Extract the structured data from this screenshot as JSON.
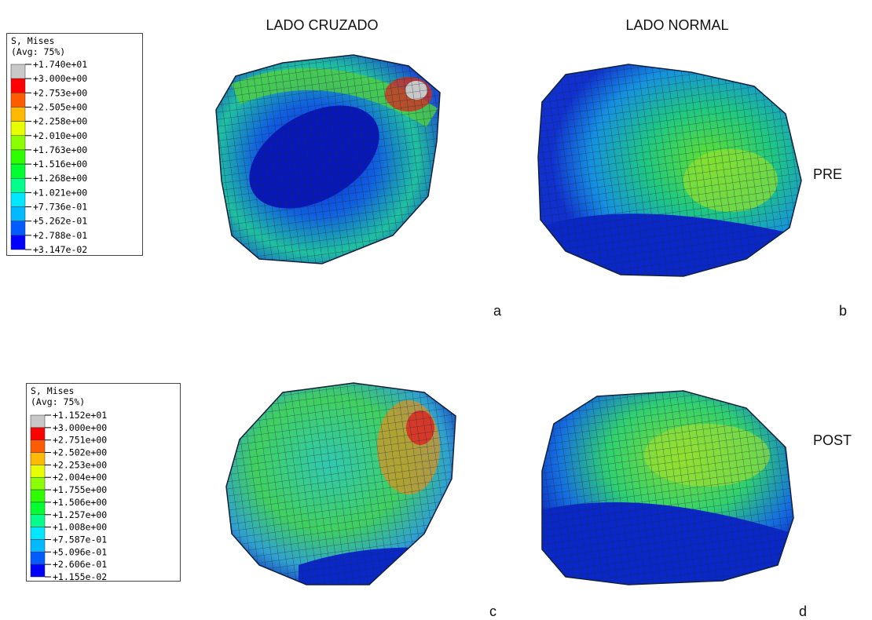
{
  "header": {
    "columns": [
      "LADO CRUZADO",
      "LADO NORMAL"
    ]
  },
  "rows": [
    "PRE",
    "POST"
  ],
  "panels": [
    "a",
    "b",
    "c",
    "d"
  ],
  "legends": [
    {
      "title": "S, Mises",
      "subtitle": "(Avg: 75%)",
      "labels": [
        "+1.740e+01",
        "+3.000e+00",
        "+2.753e+00",
        "+2.505e+00",
        "+2.258e+00",
        "+2.010e+00",
        "+1.763e+00",
        "+1.516e+00",
        "+1.268e+00",
        "+1.021e+00",
        "+7.736e-01",
        "+5.262e-01",
        "+2.788e-01",
        "+3.147e-02"
      ]
    },
    {
      "title": "S, Mises",
      "subtitle": "(Avg: 75%)",
      "labels": [
        "+1.152e+01",
        "+3.000e+00",
        "+2.751e+00",
        "+2.502e+00",
        "+2.253e+00",
        "+2.004e+00",
        "+1.755e+00",
        "+1.506e+00",
        "+1.257e+00",
        "+1.008e+00",
        "+7.587e-01",
        "+5.096e-01",
        "+2.606e-01",
        "+1.155e-02"
      ]
    }
  ]
}
